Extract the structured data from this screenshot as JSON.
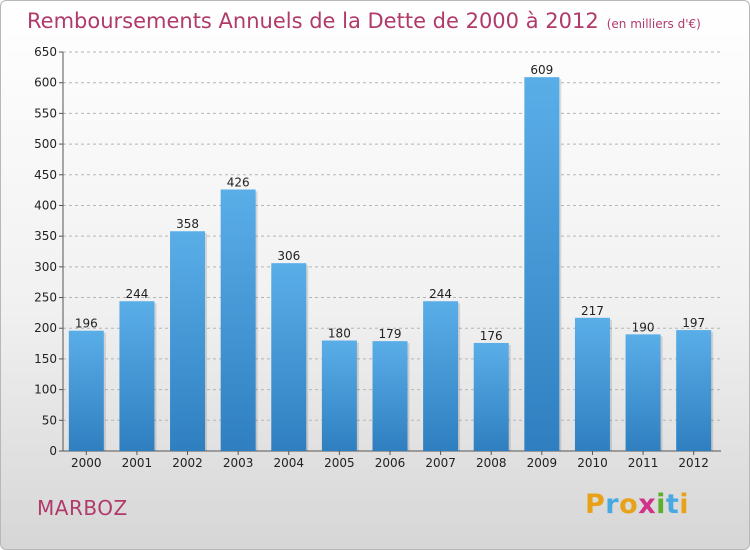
{
  "title": "Remboursements Annuels de la Dette de 2000 à 2012",
  "title_unit": "(en milliers d'€)",
  "commune": "MARBOZ",
  "logo": {
    "text": "Proxiti",
    "letters": [
      {
        "ch": "P",
        "color": "#e8a21a"
      },
      {
        "ch": "r",
        "color": "#4aa8e0"
      },
      {
        "ch": "o",
        "color": "#e8a21a"
      },
      {
        "ch": "x",
        "color": "#d0328a"
      },
      {
        "ch": "i",
        "color": "#5cb030"
      },
      {
        "ch": "t",
        "color": "#4aa8e0"
      },
      {
        "ch": "i",
        "color": "#e8a21a"
      }
    ]
  },
  "colors": {
    "bar_top": "#5aaee8",
    "bar_bottom": "#2f7fc0",
    "title": "#b03a6a",
    "grid": "#b5b5b5"
  },
  "chart_data": {
    "type": "bar",
    "categories": [
      "2000",
      "2001",
      "2002",
      "2003",
      "2004",
      "2005",
      "2006",
      "2007",
      "2008",
      "2009",
      "2010",
      "2011",
      "2012"
    ],
    "values": [
      196,
      244,
      358,
      426,
      306,
      180,
      179,
      244,
      176,
      609,
      217,
      190,
      197
    ],
    "ylim": [
      0,
      650
    ],
    "yticks": [
      0,
      50,
      100,
      150,
      200,
      250,
      300,
      350,
      400,
      450,
      500,
      550,
      600,
      650
    ],
    "grid": "horizontal dashed",
    "legend": "none"
  }
}
